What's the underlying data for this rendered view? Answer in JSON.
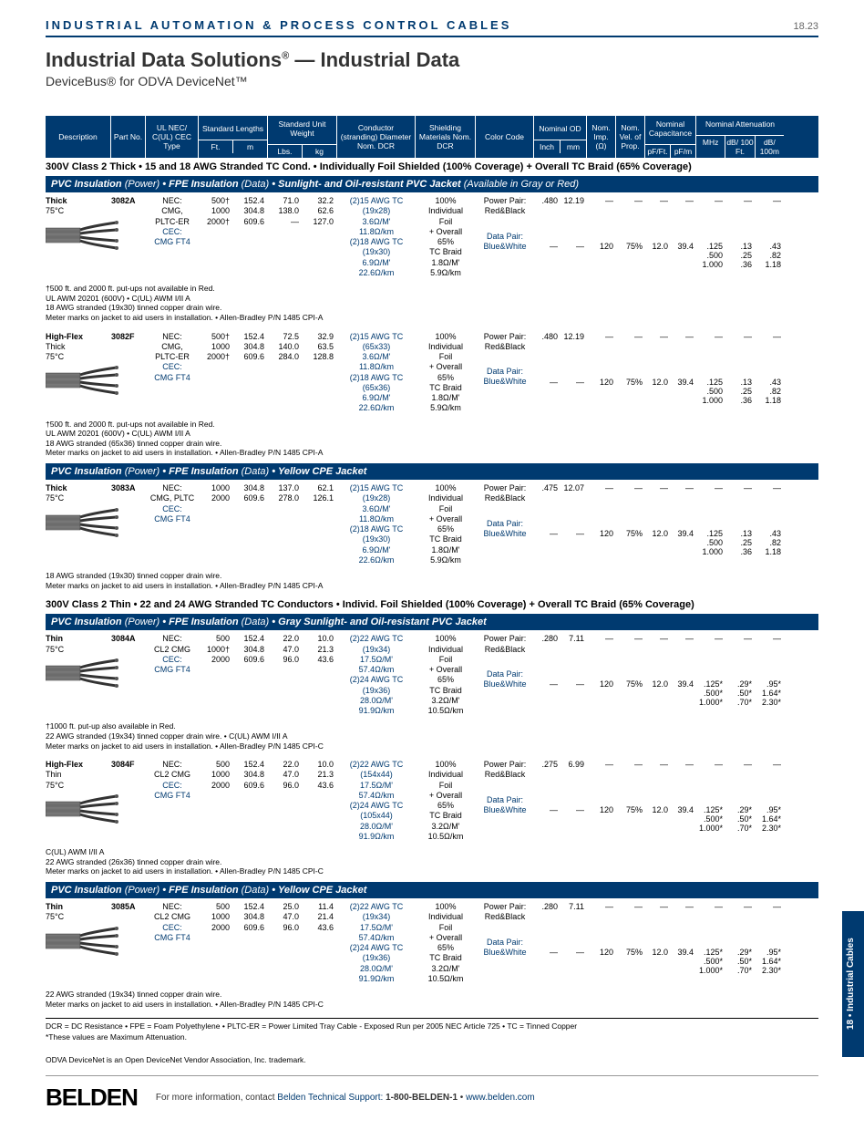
{
  "header": {
    "category": "INDUSTRIAL AUTOMATION & PROCESS CONTROL CABLES",
    "pageNum": "18.23"
  },
  "title": {
    "line1a": "Industrial Data Solutions",
    "line1b": " — Industrial Data",
    "line2": "DeviceBus® for ODVA DeviceNet™"
  },
  "colHeaders": {
    "desc": "Description",
    "part": "Part No.",
    "ul": "UL NEC/ C(UL) CEC Type",
    "stdLen": "Standard Lengths",
    "ft": "Ft.",
    "m": "m",
    "stdWt": "Standard Unit Weight",
    "lbs": "Lbs.",
    "kg": "kg",
    "cond": "Conductor (stranding) Diameter Nom. DCR",
    "shield": "Shielding Materials Nom. DCR",
    "color": "Color Code",
    "od": "Nominal OD",
    "inch": "Inch",
    "mm": "mm",
    "imp": "Nom. Imp. (Ω)",
    "vel": "Nom. Vel. of Prop.",
    "cap": "Nominal Capacitance",
    "pfft": "pF/Ft.",
    "pfm": "pF/m",
    "att": "Nominal Attenuation",
    "mhz": "MHz",
    "db100ft": "dB/ 100 Ft.",
    "db100m": "dB/ 100m"
  },
  "sections": [
    {
      "heading": "300V Class 2 Thick • 15 and 18 AWG Stranded TC Cond. • Individually Foil Shielded (100% Coverage) + Overall TC Braid (65% Coverage)",
      "bluebar": "PVC Insulation (Power) • FPE Insulation (Data) • Sunlight- and Oil-resistant PVC Jacket (Available in Gray or Red)",
      "products": [
        {
          "desc": "Thick\n75°C",
          "part": "3082A",
          "ul": "NEC:\nCMG,\nPLTC-ER",
          "ulBlue": "CEC:\nCMG FT4",
          "ft": [
            "500†",
            "1000",
            "2000†"
          ],
          "m": [
            "152.4",
            "304.8",
            "609.6"
          ],
          "lbs": [
            "71.0",
            "138.0",
            "—"
          ],
          "kg": [
            "32.2",
            "62.6",
            "127.0"
          ],
          "cond": "(2)15 AWG TC\n(19x28)\n3.6Ω/M'\n11.8Ω/km\n(2)18 AWG TC\n(19x30)\n6.9Ω/M'\n22.6Ω/km",
          "shield": "100%\nIndividual\nFoil\n+ Overall\n65%\nTC Braid\n1.8Ω/M'\n5.9Ω/km",
          "colorP": "Power Pair:\nRed&Black",
          "colorD": "Data Pair:\nBlue&White",
          "odIn": ".480",
          "odMm": "12.19",
          "imp": "120",
          "vel": "75%",
          "pfft": "12.0",
          "pfm": "39.4",
          "attMhz": [
            ".125",
            ".500",
            "1.000"
          ],
          "attFt": [
            ".13",
            ".25",
            ".36"
          ],
          "attM": [
            ".43",
            ".82",
            "1.18"
          ],
          "note": "†500 ft. and 2000 ft. put-ups not available in Red.\nUL AWM 20201 (600V) • C(UL) AWM I/II A\n18 AWG stranded (19x30) tinned copper drain wire.\nMeter marks on jacket to aid users in installation. • Allen-Bradley P/N 1485 CPI-A"
        },
        {
          "desc": "High-Flex\nThick\n75°C",
          "part": "3082F",
          "ul": "NEC:\nCMG,\nPLTC-ER",
          "ulBlue": "CEC:\nCMG FT4",
          "ft": [
            "500†",
            "1000",
            "2000†"
          ],
          "m": [
            "152.4",
            "304.8",
            "609.6"
          ],
          "lbs": [
            "72.5",
            "140.0",
            "284.0"
          ],
          "kg": [
            "32.9",
            "63.5",
            "128.8"
          ],
          "cond": "(2)15 AWG TC\n(65x33)\n3.6Ω/M'\n11.8Ω/km\n(2)18 AWG TC\n(65x36)\n6.9Ω/M'\n22.6Ω/km",
          "shield": "100%\nIndividual\nFoil\n+ Overall\n65%\nTC Braid\n1.8Ω/M'\n5.9Ω/km",
          "colorP": "Power Pair:\nRed&Black",
          "colorD": "Data Pair:\nBlue&White",
          "odIn": ".480",
          "odMm": "12.19",
          "imp": "120",
          "vel": "75%",
          "pfft": "12.0",
          "pfm": "39.4",
          "attMhz": [
            ".125",
            ".500",
            "1.000"
          ],
          "attFt": [
            ".13",
            ".25",
            ".36"
          ],
          "attM": [
            ".43",
            ".82",
            "1.18"
          ],
          "note": "†500 ft. and 2000 ft. put-ups not available in Red.\nUL AWM 20201 (600V) • C(UL) AWM I/II A\n18 AWG stranded (65x36) tinned copper drain wire.\nMeter marks on jacket to aid users in installation. • Allen-Bradley P/N 1485 CPI-A"
        }
      ]
    },
    {
      "bluebar": "PVC Insulation (Power) • FPE Insulation (Data) • Yellow CPE Jacket",
      "products": [
        {
          "desc": "Thick\n75°C",
          "part": "3083A",
          "ul": "NEC:\nCMG, PLTC",
          "ulBlue": "CEC:\nCMG FT4",
          "ft": [
            "1000",
            "2000"
          ],
          "m": [
            "304.8",
            "609.6"
          ],
          "lbs": [
            "137.0",
            "278.0"
          ],
          "kg": [
            "62.1",
            "126.1"
          ],
          "cond": "(2)15 AWG TC\n(19x28)\n3.6Ω/M'\n11.8Ω/km\n(2)18 AWG TC\n(19x30)\n6.9Ω/M'\n22.6Ω/km",
          "shield": "100%\nIndividual\nFoil\n+ Overall\n65%\nTC Braid\n1.8Ω/M'\n5.9Ω/km",
          "colorP": "Power Pair:\nRed&Black",
          "colorD": "Data Pair:\nBlue&White",
          "odIn": ".475",
          "odMm": "12.07",
          "imp": "120",
          "vel": "75%",
          "pfft": "12.0",
          "pfm": "39.4",
          "attMhz": [
            ".125",
            ".500",
            "1.000"
          ],
          "attFt": [
            ".13",
            ".25",
            ".36"
          ],
          "attM": [
            ".43",
            ".82",
            "1.18"
          ],
          "note": "18 AWG stranded (19x30) tinned copper drain wire.\nMeter marks on jacket to aid users in installation. • Allen-Bradley P/N 1485 CPI-A"
        }
      ]
    },
    {
      "heading": "300V Class 2 Thin • 22 and 24 AWG Stranded TC Conductors • Individ. Foil Shielded (100% Coverage) + Overall TC Braid (65% Coverage)",
      "bluebar": "PVC Insulation (Power) • FPE Insulation (Data) • Gray Sunlight- and Oil-resistant PVC Jacket",
      "products": [
        {
          "desc": "Thin\n75°C",
          "part": "3084A",
          "ul": "NEC:\nCL2 CMG",
          "ulBlue": "CEC:\nCMG FT4",
          "ft": [
            "500",
            "1000†",
            "2000"
          ],
          "m": [
            "152.4",
            "304.8",
            "609.6"
          ],
          "lbs": [
            "22.0",
            "47.0",
            "96.0"
          ],
          "kg": [
            "10.0",
            "21.3",
            "43.6"
          ],
          "cond": "(2)22 AWG TC\n(19x34)\n17.5Ω/M'\n57.4Ω/km\n(2)24 AWG TC\n(19x36)\n28.0Ω/M'\n91.9Ω/km",
          "shield": "100%\nIndividual\nFoil\n+ Overall\n65%\nTC Braid\n3.2Ω/M'\n10.5Ω/km",
          "colorP": "Power Pair:\nRed&Black",
          "colorD": "Data Pair:\nBlue&White",
          "odIn": ".280",
          "odMm": "7.11",
          "imp": "120",
          "vel": "75%",
          "pfft": "12.0",
          "pfm": "39.4",
          "attMhz": [
            ".125*",
            ".500*",
            "1.000*"
          ],
          "attFt": [
            ".29*",
            ".50*",
            ".70*"
          ],
          "attM": [
            ".95*",
            "1.64*",
            "2.30*"
          ],
          "note": "†1000 ft. put-up also available in Red.\n22 AWG stranded (19x34) tinned copper drain wire. • C(UL) AWM I/II A\nMeter marks on jacket to aid users in installation. • Allen-Bradley P/N 1485 CPI-C"
        },
        {
          "desc": "High-Flex\nThin\n75°C",
          "part": "3084F",
          "ul": "NEC:\nCL2 CMG",
          "ulBlue": "CEC:\nCMG FT4",
          "ft": [
            "500",
            "1000",
            "2000"
          ],
          "m": [
            "152.4",
            "304.8",
            "609.6"
          ],
          "lbs": [
            "22.0",
            "47.0",
            "96.0"
          ],
          "kg": [
            "10.0",
            "21.3",
            "43.6"
          ],
          "cond": "(2)22 AWG TC\n(154x44)\n17.5Ω/M'\n57.4Ω/km\n(2)24 AWG TC\n(105x44)\n28.0Ω/M'\n91.9Ω/km",
          "shield": "100%\nIndividual\nFoil\n+ Overall\n65%\nTC Braid\n3.2Ω/M'\n10.5Ω/km",
          "colorP": "Power Pair:\nRed&Black",
          "colorD": "Data Pair:\nBlue&White",
          "odIn": ".275",
          "odMm": "6.99",
          "imp": "120",
          "vel": "75%",
          "pfft": "12.0",
          "pfm": "39.4",
          "attMhz": [
            ".125*",
            ".500*",
            "1.000*"
          ],
          "attFt": [
            ".29*",
            ".50*",
            ".70*"
          ],
          "attM": [
            ".95*",
            "1.64*",
            "2.30*"
          ],
          "note": "C(UL) AWM I/II A\n22 AWG stranded (26x36) tinned copper drain wire.\nMeter marks on jacket to aid users in installation. • Allen-Bradley P/N 1485 CPI-C"
        }
      ]
    },
    {
      "bluebar": "PVC Insulation (Power) • FPE Insulation (Data) • Yellow CPE Jacket",
      "products": [
        {
          "desc": "Thin\n75°C",
          "part": "3085A",
          "ul": "NEC:\nCL2 CMG",
          "ulBlue": "CEC:\nCMG FT4",
          "ft": [
            "500",
            "1000",
            "2000"
          ],
          "m": [
            "152.4",
            "304.8",
            "609.6"
          ],
          "lbs": [
            "25.0",
            "47.0",
            "96.0"
          ],
          "kg": [
            "11.4",
            "21.4",
            "43.6"
          ],
          "cond": "(2)22 AWG TC\n(19x34)\n17.5Ω/M'\n57.4Ω/km\n(2)24 AWG TC\n(19x36)\n28.0Ω/M'\n91.9Ω/km",
          "shield": "100%\nIndividual\nFoil\n+ Overall\n65%\nTC Braid\n3.2Ω/M'\n10.5Ω/km",
          "colorP": "Power Pair:\nRed&Black",
          "colorD": "Data Pair:\nBlue&White",
          "odIn": ".280",
          "odMm": "7.11",
          "imp": "120",
          "vel": "75%",
          "pfft": "12.0",
          "pfm": "39.4",
          "attMhz": [
            ".125*",
            ".500*",
            "1.000*"
          ],
          "attFt": [
            ".29*",
            ".50*",
            ".70*"
          ],
          "attM": [
            ".95*",
            "1.64*",
            "2.30*"
          ],
          "note": "22 AWG stranded (19x34) tinned copper drain wire.\nMeter marks on jacket to aid users in installation. • Allen-Bradley P/N 1485 CPI-C"
        }
      ]
    }
  ],
  "legend": "DCR = DC Resistance • FPE = Foam Polyethylene • PLTC-ER = Power Limited Tray Cable - Exposed Run per 2005 NEC Article 725 • TC = Tinned Copper",
  "maxAtt": "*These values are Maximum Attenuation.",
  "trademark": "ODVA DeviceNet is an Open DeviceNet Vendor Association, Inc. trademark.",
  "footer": {
    "logo": "BELDEN",
    "text1": "For more information, contact ",
    "text2": "Belden Technical Support: ",
    "phone": "1-800-BELDEN-1",
    "sep": " • ",
    "url": "www.belden.com"
  },
  "sideTab": "18 • Industrial Cables"
}
